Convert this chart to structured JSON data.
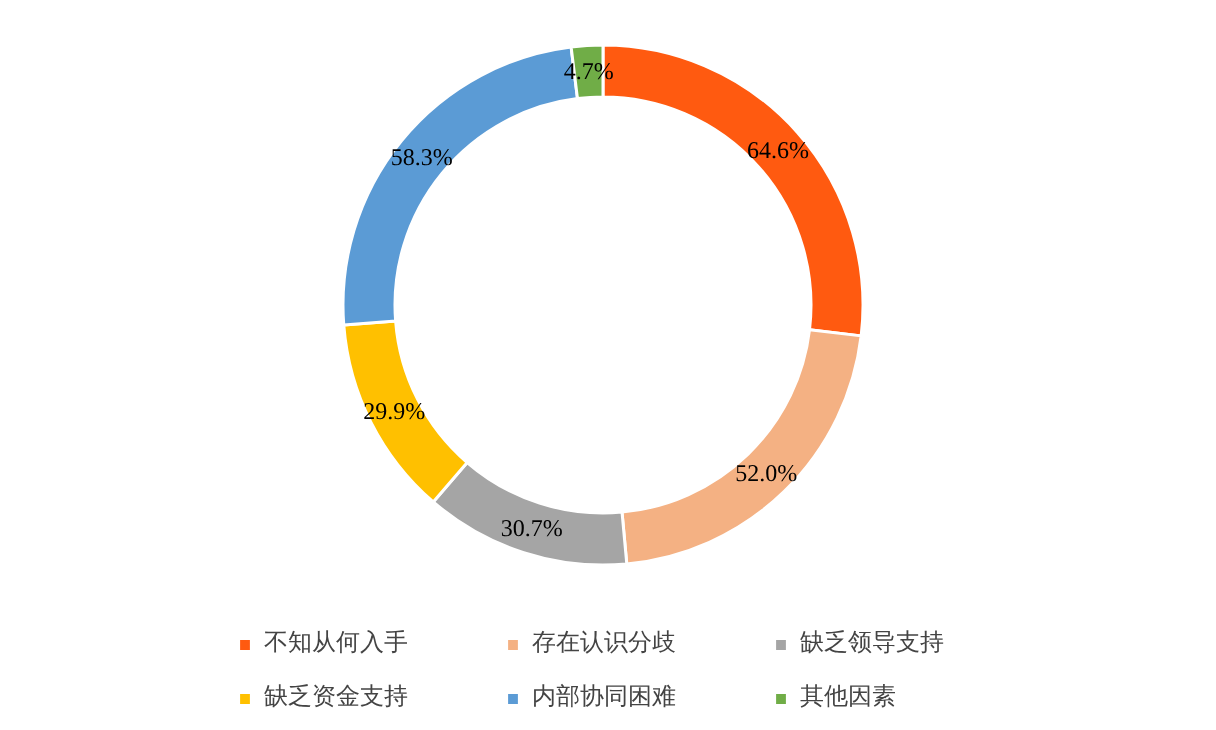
{
  "chart_data": {
    "type": "donut",
    "categories": [
      "不知从何入手",
      "存在认识分歧",
      "缺乏领导支持",
      "缺乏资金支持",
      "内部协同困难",
      "其他因素"
    ],
    "values": [
      64.6,
      52.0,
      30.7,
      29.9,
      58.3,
      4.7
    ],
    "colors": [
      "#ff5a10",
      "#f4b183",
      "#a5a5a5",
      "#ffc000",
      "#5b9bd5",
      "#70ad47"
    ],
    "value_labels": [
      "64.6%",
      "52.0%",
      "30.7%",
      "29.9%",
      "58.3%",
      "4.7%"
    ],
    "legend": "bottom"
  }
}
